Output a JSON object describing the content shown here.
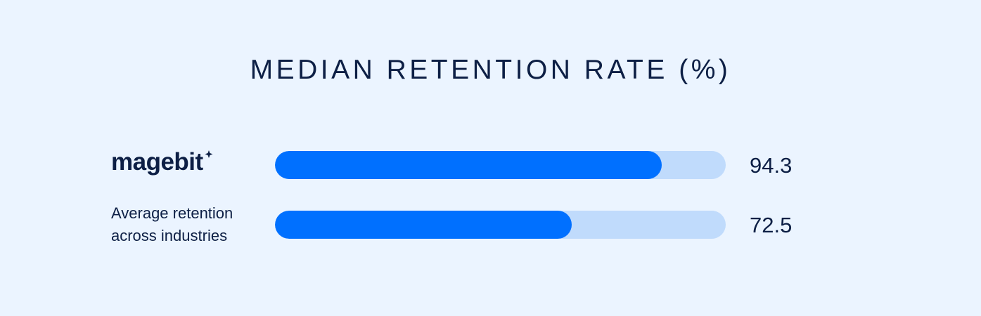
{
  "chart_data": {
    "type": "bar",
    "orientation": "horizontal",
    "title": "MEDIAN RETENTION RATE (%)",
    "categories": [
      "magebit",
      "Average retention\nacross industries"
    ],
    "values": [
      94.3,
      72.5
    ],
    "value_labels": [
      "94.3",
      "72.5"
    ],
    "xlim": [
      0,
      110
    ],
    "grid": false,
    "legend": "none",
    "colors": {
      "fill": "#0070FF",
      "track": "#C0DBFC",
      "background": "#EBF4FF",
      "text": "#0D1F45"
    }
  },
  "logo": {
    "name": "magebit-logo",
    "text": "magebit"
  }
}
